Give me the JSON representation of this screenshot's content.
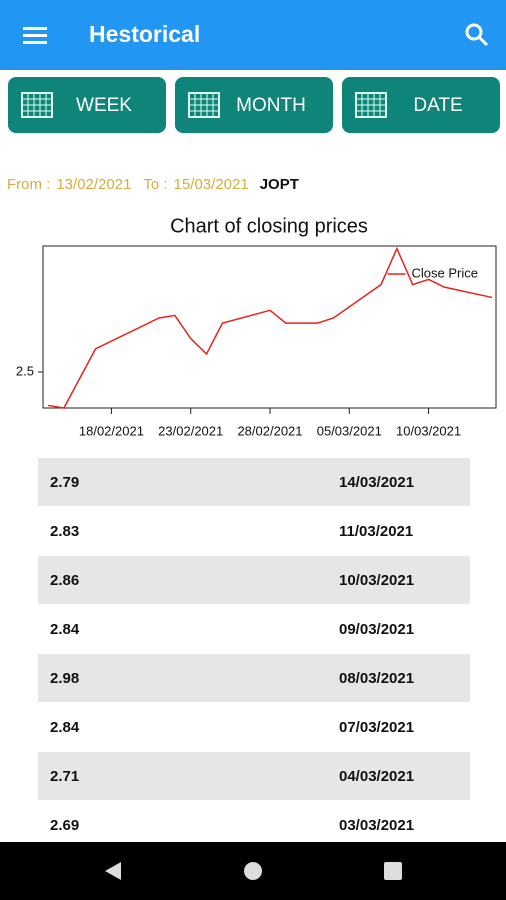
{
  "app_bar": {
    "title": "Hestorical"
  },
  "buttons": [
    "WEEK",
    "MONTH",
    "DATE"
  ],
  "range": {
    "from_label": "From :",
    "from": "13/02/2021",
    "to_label": "To :",
    "to": "15/03/2021",
    "symbol": "JOPT"
  },
  "chart_data": {
    "type": "line",
    "title": "Chart of closing prices",
    "x": [
      "14/02/2021",
      "15/02/2021",
      "17/02/2021",
      "21/02/2021",
      "22/02/2021",
      "23/02/2021",
      "24/02/2021",
      "25/02/2021",
      "28/02/2021",
      "01/03/2021",
      "03/03/2021",
      "04/03/2021",
      "07/03/2021",
      "08/03/2021",
      "09/03/2021",
      "10/03/2021",
      "11/03/2021",
      "14/03/2021"
    ],
    "series": [
      {
        "name": "Close Price",
        "color": "#e8221c",
        "values": [
          2.37,
          2.36,
          2.59,
          2.71,
          2.72,
          2.63,
          2.57,
          2.69,
          2.74,
          2.69,
          2.69,
          2.71,
          2.84,
          2.98,
          2.84,
          2.86,
          2.83,
          2.79
        ]
      }
    ],
    "xlim": [
      "14/02/2021",
      "14/03/2021"
    ],
    "xticks": [
      "18/02/2021",
      "23/02/2021",
      "28/02/2021",
      "05/03/2021",
      "10/03/2021"
    ],
    "ylim": [
      2.36,
      2.99
    ],
    "yticks": [
      2.5
    ],
    "legend": "top-right"
  },
  "table": {
    "rows": [
      [
        2.79,
        "14/03/2021"
      ],
      [
        2.83,
        "11/03/2021"
      ],
      [
        2.86,
        "10/03/2021"
      ],
      [
        2.84,
        "09/03/2021"
      ],
      [
        2.98,
        "08/03/2021"
      ],
      [
        2.84,
        "07/03/2021"
      ],
      [
        2.71,
        "04/03/2021"
      ],
      [
        2.69,
        "03/03/2021"
      ]
    ]
  }
}
